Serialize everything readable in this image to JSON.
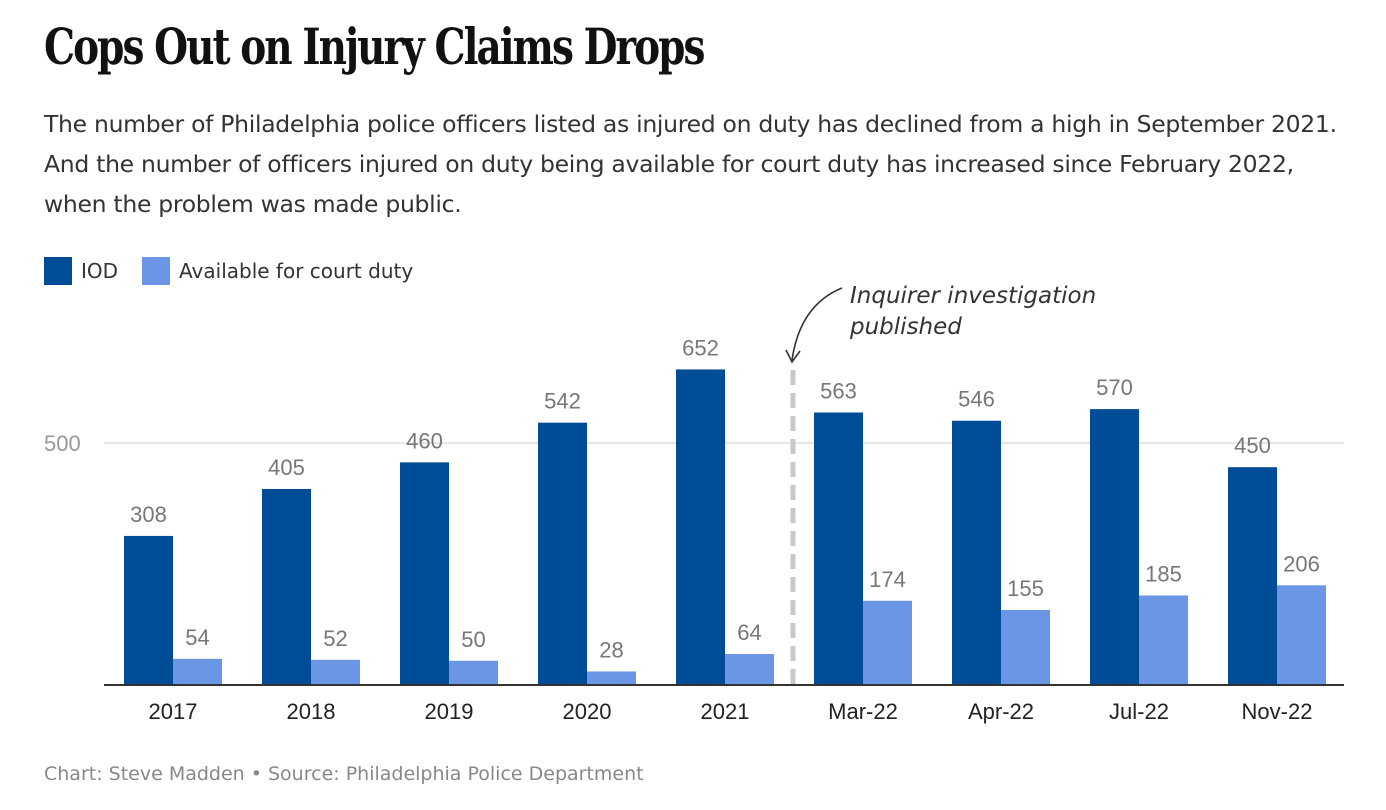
{
  "header": {
    "title": "Cops Out on Injury Claims Drops",
    "subtitle": "The number of Philadelphia police officers listed as injured on duty has declined from a high in September 2021. And the number of officers injured on duty being available for court duty has increased since February 2022, when the problem was made public."
  },
  "footer": {
    "credit": "Chart: Steve Madden • Source: Philadelphia Police Department"
  },
  "colors": {
    "iod": "#004c97",
    "available": "#6a96e5",
    "gridline": "#e6e6e6",
    "baseline": "#333333",
    "annotation_line": "#c8c8c8"
  },
  "chart_data": {
    "type": "bar",
    "title": "Cops Out on Injury Claims Drops",
    "xlabel": "",
    "ylabel": "",
    "categories": [
      "2017",
      "2018",
      "2019",
      "2020",
      "2021",
      "Mar-22",
      "Apr-22",
      "Jul-22",
      "Nov-22"
    ],
    "series": [
      {
        "name": "IOD",
        "color": "#004c97",
        "values": [
          308,
          405,
          460,
          542,
          652,
          563,
          546,
          570,
          450
        ]
      },
      {
        "name": "Available for court duty",
        "color": "#6a96e5",
        "values": [
          54,
          52,
          50,
          28,
          64,
          174,
          155,
          185,
          206
        ]
      }
    ],
    "ylim": [
      0,
      700
    ],
    "yticks": [
      500
    ],
    "ytick_labels": [
      "500"
    ],
    "grid": true,
    "legend": "top-left",
    "data_labels": true,
    "annotation": {
      "text_lines": [
        "Inquirer investigation",
        "published"
      ],
      "position_between": [
        "2021",
        "Mar-22"
      ],
      "style": "dashed-vertical-line-with-arrow"
    }
  }
}
